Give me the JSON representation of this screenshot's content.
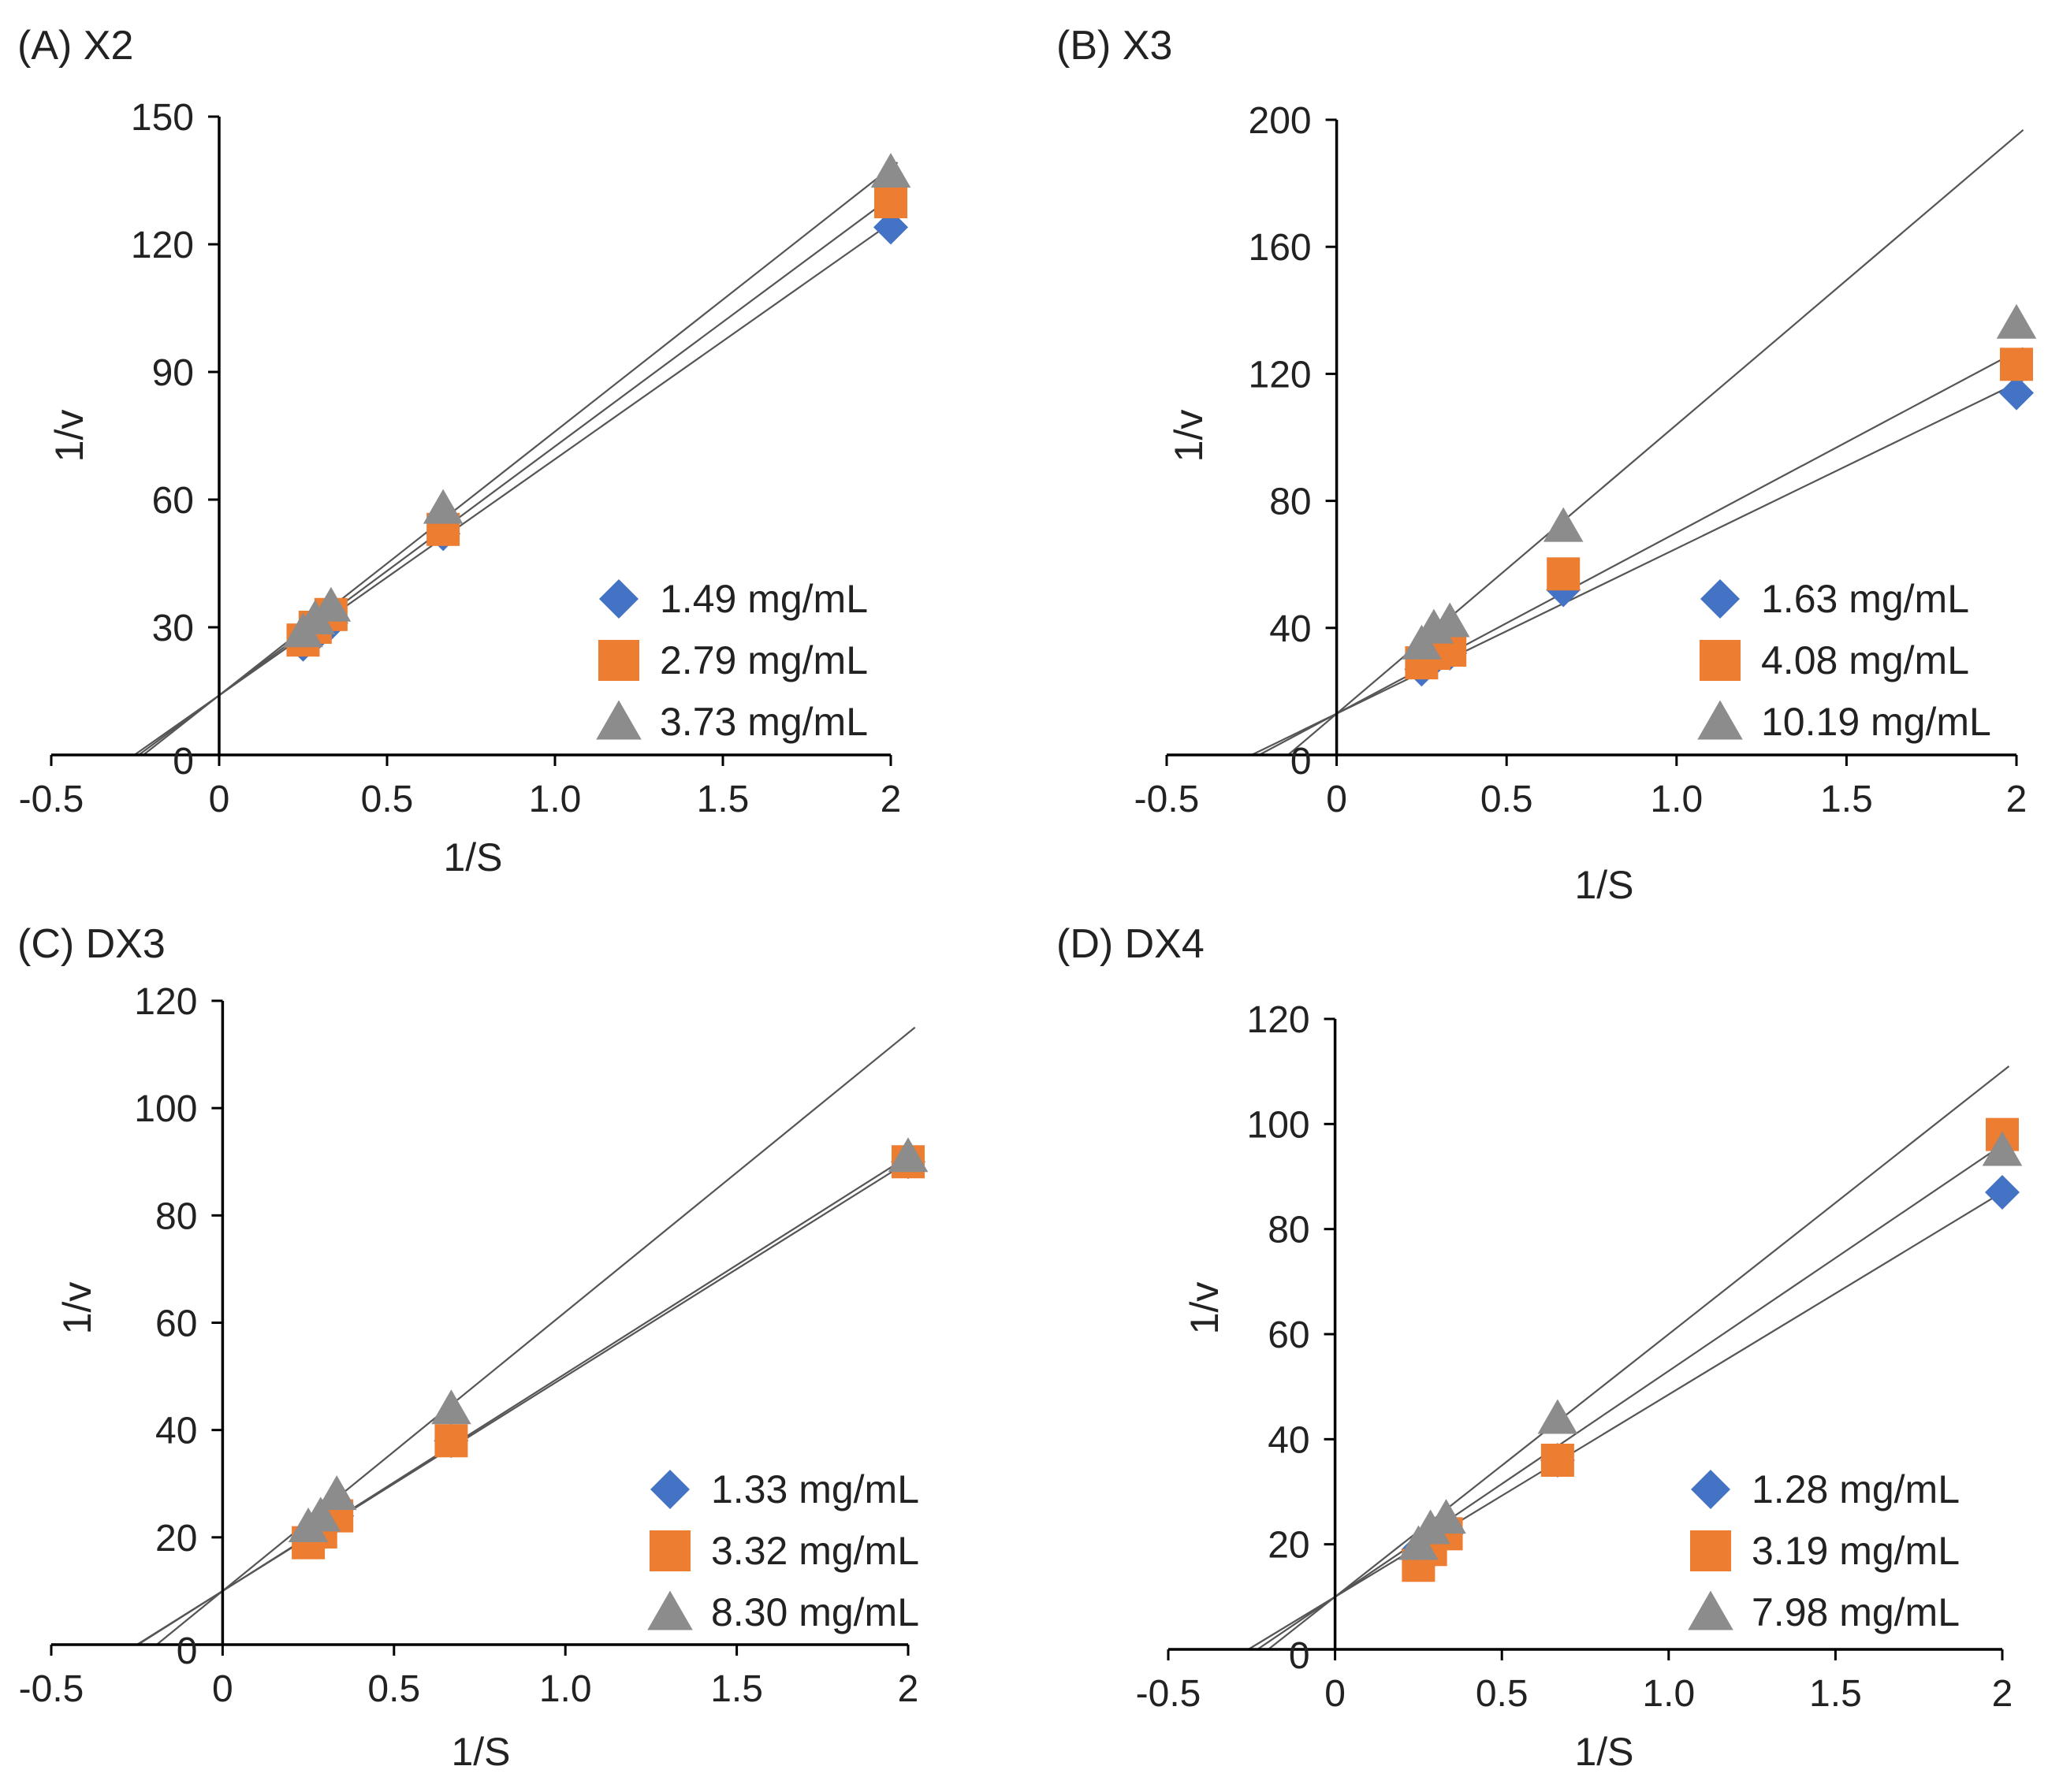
{
  "colors": {
    "diamond": "#4472C4",
    "square": "#ED7D31",
    "triangle": "#8C8C8C",
    "axis": "#000000",
    "fit_line": "#555555"
  },
  "chart_data": [
    {
      "type": "scatter",
      "title": "(A) X2",
      "xlabel": "1/S",
      "ylabel": "1/v",
      "xlim": [
        -0.5,
        2
      ],
      "ylim": [
        0,
        150
      ],
      "xticks": [
        "-0.5",
        "0",
        "0.5",
        "1.0",
        "1.5",
        "2"
      ],
      "xtick_values": [
        -0.5,
        0,
        0.5,
        1.0,
        1.5,
        2
      ],
      "yticks": [
        "0",
        "30",
        "60",
        "90",
        "120",
        "150"
      ],
      "ytick_values": [
        0,
        30,
        60,
        90,
        120,
        150
      ],
      "legend_position": "lower-right",
      "series": [
        {
          "name": "1.49 mg/mL",
          "marker": "diamond",
          "x": [
            0.25,
            0.286,
            0.333,
            0.667,
            2.0
          ],
          "y": [
            26,
            28,
            31,
            52,
            124
          ],
          "fit": {
            "slope": 55.5,
            "intercept": 14
          }
        },
        {
          "name": "2.79 mg/mL",
          "marker": "square",
          "x": [
            0.25,
            0.286,
            0.333,
            0.667,
            2.0
          ],
          "y": [
            27,
            30,
            33,
            53,
            130
          ],
          "fit": {
            "slope": 58.5,
            "intercept": 14
          }
        },
        {
          "name": "3.73 mg/mL",
          "marker": "triangle",
          "x": [
            0.25,
            0.286,
            0.333,
            0.667,
            2.0
          ],
          "y": [
            29,
            32,
            35,
            58,
            137
          ],
          "fit": {
            "slope": 62,
            "intercept": 14
          }
        }
      ]
    },
    {
      "type": "scatter",
      "title": "(B) X3",
      "xlabel": "1/S",
      "ylabel": "1/v",
      "xlim": [
        -0.5,
        2
      ],
      "ylim": [
        0,
        200
      ],
      "xticks": [
        "-0.5",
        "0",
        "0.5",
        "1.0",
        "1.5",
        "2"
      ],
      "xtick_values": [
        -0.5,
        0,
        0.5,
        1.0,
        1.5,
        2
      ],
      "yticks": [
        "0",
        "40",
        "80",
        "120",
        "160",
        "200"
      ],
      "ytick_values": [
        0,
        40,
        80,
        120,
        160,
        200
      ],
      "legend_position": "lower-right",
      "series": [
        {
          "name": "1.63 mg/mL",
          "marker": "diamond",
          "x": [
            0.25,
            0.286,
            0.333,
            0.667,
            2.0
          ],
          "y": [
            27,
            30,
            32,
            52,
            114
          ],
          "fit": {
            "slope": 52,
            "intercept": 13
          }
        },
        {
          "name": "4.08 mg/mL",
          "marker": "square",
          "x": [
            0.25,
            0.286,
            0.333,
            0.667,
            2.0
          ],
          "y": [
            29,
            32,
            33,
            57,
            123
          ],
          "fit": {
            "slope": 57,
            "intercept": 13
          }
        },
        {
          "name": "10.19 mg/mL",
          "marker": "triangle",
          "x": [
            0.25,
            0.286,
            0.333,
            0.667,
            2.0
          ],
          "y": [
            35,
            40,
            42,
            72,
            136
          ],
          "fit": {
            "slope": 91,
            "intercept": 13
          }
        }
      ]
    },
    {
      "type": "scatter",
      "title": "(C) DX3",
      "xlabel": "1/S",
      "ylabel": "1/v",
      "xlim": [
        -0.5,
        2
      ],
      "ylim": [
        0,
        120
      ],
      "xticks": [
        "-0.5",
        "0",
        "0.5",
        "1.0",
        "1.5",
        "2"
      ],
      "xtick_values": [
        -0.5,
        0,
        0.5,
        1.0,
        1.5,
        2
      ],
      "yticks": [
        "0",
        "20",
        "40",
        "60",
        "80",
        "100",
        "120"
      ],
      "ytick_values": [
        0,
        20,
        40,
        60,
        80,
        100,
        120
      ],
      "legend_position": "lower-right",
      "series": [
        {
          "name": "1.33 mg/mL",
          "marker": "diamond",
          "x": [
            0.25,
            0.286,
            0.333,
            0.667,
            2.0
          ],
          "y": [
            20,
            22,
            24,
            38,
            90
          ],
          "fit": {
            "slope": 40,
            "intercept": 10
          }
        },
        {
          "name": "3.32 mg/mL",
          "marker": "square",
          "x": [
            0.25,
            0.286,
            0.333,
            0.667,
            2.0
          ],
          "y": [
            19,
            21,
            24,
            38,
            90
          ],
          "fit": {
            "slope": 40.5,
            "intercept": 10
          }
        },
        {
          "name": "8.30 mg/mL",
          "marker": "triangle",
          "x": [
            0.25,
            0.286,
            0.333,
            0.667,
            2.0
          ],
          "y": [
            22,
            24,
            28,
            44,
            91
          ],
          "fit": {
            "slope": 52,
            "intercept": 10
          }
        }
      ]
    },
    {
      "type": "scatter",
      "title": "(D) DX4",
      "xlabel": "1/S",
      "ylabel": "1/v",
      "xlim": [
        -0.5,
        2
      ],
      "ylim": [
        0,
        120
      ],
      "xticks": [
        "-0.5",
        "0",
        "0.5",
        "1.0",
        "1.5",
        "2"
      ],
      "xtick_values": [
        -0.5,
        0,
        0.5,
        1.0,
        1.5,
        2
      ],
      "yticks": [
        "0",
        "20",
        "40",
        "60",
        "80",
        "100",
        "120"
      ],
      "ytick_values": [
        0,
        20,
        40,
        60,
        80,
        100,
        120
      ],
      "legend_position": "lower-right",
      "series": [
        {
          "name": "1.28 mg/mL",
          "marker": "diamond",
          "x": [
            0.25,
            0.286,
            0.333,
            0.667,
            2.0
          ],
          "y": [
            19,
            20,
            22,
            36,
            87
          ],
          "fit": {
            "slope": 38.5,
            "intercept": 10
          }
        },
        {
          "name": "3.19 mg/mL",
          "marker": "square",
          "x": [
            0.25,
            0.286,
            0.333,
            0.667,
            2.0
          ],
          "y": [
            16,
            19,
            22,
            36,
            98
          ],
          "fit": {
            "slope": 43,
            "intercept": 10
          }
        },
        {
          "name": "7.98 mg/mL",
          "marker": "triangle",
          "x": [
            0.25,
            0.286,
            0.333,
            0.667,
            2.0
          ],
          "y": [
            20,
            23,
            25,
            44,
            95
          ],
          "fit": {
            "slope": 50,
            "intercept": 10
          }
        }
      ]
    }
  ]
}
